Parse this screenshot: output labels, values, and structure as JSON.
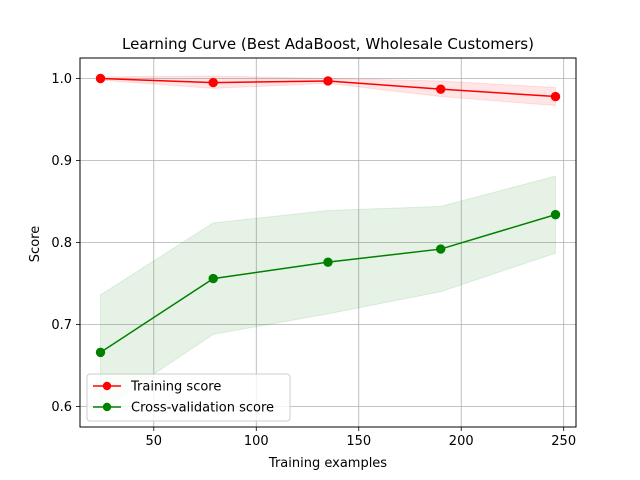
{
  "chart_data": {
    "type": "line",
    "title": "Learning Curve (Best AdaBoost, Wholesale Customers)",
    "xlabel": "Training examples",
    "ylabel": "Score",
    "xlim": [
      14,
      256
    ],
    "ylim": [
      0.575,
      1.025
    ],
    "xticks": [
      50,
      100,
      150,
      200,
      250
    ],
    "yticks": [
      0.6,
      0.7,
      0.8,
      0.9,
      1.0
    ],
    "xtick_labels": [
      "50",
      "100",
      "150",
      "200",
      "250"
    ],
    "ytick_labels": [
      "0.6",
      "0.7",
      "0.8",
      "0.9",
      "1.0"
    ],
    "grid": true,
    "legend_position": "lower-left",
    "x": [
      24,
      79,
      135,
      190,
      246
    ],
    "series": [
      {
        "name": "Training score",
        "color": "#ff0000",
        "fill_color": "#ff0000",
        "values": [
          1.0,
          0.995,
          0.997,
          0.987,
          0.978
        ],
        "band_lower": [
          0.998,
          0.988,
          0.994,
          0.978,
          0.967
        ],
        "band_upper": [
          1.002,
          1.003,
          1.0,
          0.997,
          0.989
        ]
      },
      {
        "name": "Cross-validation score",
        "color": "#008000",
        "fill_color": "#008000",
        "values": [
          0.666,
          0.756,
          0.776,
          0.792,
          0.834
        ],
        "band_lower": [
          0.596,
          0.688,
          0.713,
          0.74,
          0.787
        ],
        "band_upper": [
          0.736,
          0.824,
          0.839,
          0.844,
          0.881
        ]
      }
    ]
  }
}
